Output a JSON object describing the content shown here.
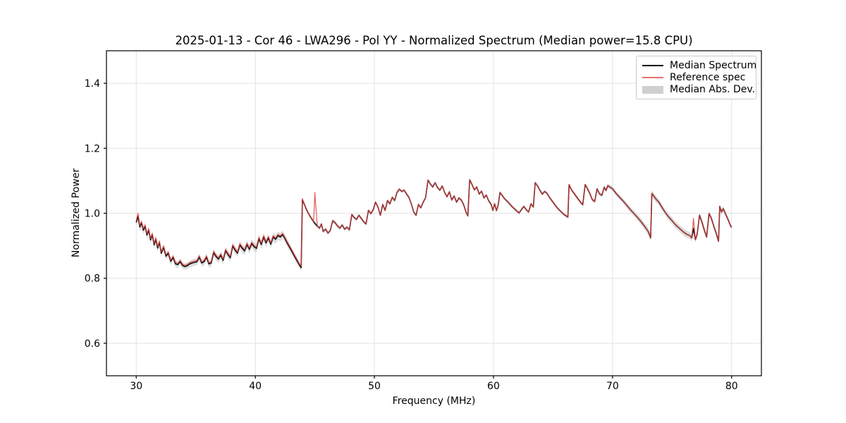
{
  "chart_data": {
    "type": "line",
    "title": "2025-01-13 - Cor 46 - LWA296 - Pol YY - Normalized Spectrum (Median power=15.8 CPU)",
    "xlabel": "Frequency (MHz)",
    "ylabel": "Normalized Power",
    "xlim": [
      27.5,
      82.5
    ],
    "ylim": [
      0.5,
      1.5
    ],
    "xticks": [
      "30",
      "40",
      "50",
      "60",
      "70",
      "80"
    ],
    "yticks": [
      "0.6",
      "0.8",
      "1.0",
      "1.2",
      "1.4"
    ],
    "grid": true,
    "grid_color": "#e2e2e2",
    "frame_color": "#000000",
    "legend": {
      "position": "upper right",
      "entries": [
        {
          "label": "Median Spectrum",
          "type": "line",
          "color": "#000000"
        },
        {
          "label": "Reference spec",
          "type": "line",
          "color": "#ef6f6f"
        },
        {
          "label": "Median Abs. Dev.",
          "type": "patch",
          "color": "#cfcfcf"
        }
      ]
    },
    "series": [
      {
        "name": "Median Spectrum",
        "color": "#0a0a0a",
        "points": [
          [
            30.0,
            0.972
          ],
          [
            30.15,
            0.99
          ],
          [
            30.3,
            0.958
          ],
          [
            30.45,
            0.97
          ],
          [
            30.6,
            0.948
          ],
          [
            30.75,
            0.96
          ],
          [
            30.9,
            0.933
          ],
          [
            31.05,
            0.948
          ],
          [
            31.2,
            0.918
          ],
          [
            31.35,
            0.934
          ],
          [
            31.5,
            0.903
          ],
          [
            31.65,
            0.92
          ],
          [
            31.8,
            0.893
          ],
          [
            31.95,
            0.91
          ],
          [
            32.1,
            0.877
          ],
          [
            32.3,
            0.895
          ],
          [
            32.5,
            0.868
          ],
          [
            32.7,
            0.877
          ],
          [
            32.9,
            0.852
          ],
          [
            33.1,
            0.864
          ],
          [
            33.3,
            0.844
          ],
          [
            33.5,
            0.842
          ],
          [
            33.7,
            0.851
          ],
          [
            33.9,
            0.839
          ],
          [
            34.1,
            0.836
          ],
          [
            34.3,
            0.839
          ],
          [
            34.5,
            0.844
          ],
          [
            34.7,
            0.847
          ],
          [
            34.9,
            0.849
          ],
          [
            35.1,
            0.851
          ],
          [
            35.3,
            0.865
          ],
          [
            35.5,
            0.847
          ],
          [
            35.7,
            0.851
          ],
          [
            35.9,
            0.865
          ],
          [
            36.1,
            0.844
          ],
          [
            36.3,
            0.847
          ],
          [
            36.5,
            0.879
          ],
          [
            36.7,
            0.867
          ],
          [
            36.9,
            0.859
          ],
          [
            37.1,
            0.871
          ],
          [
            37.3,
            0.855
          ],
          [
            37.5,
            0.885
          ],
          [
            37.7,
            0.873
          ],
          [
            37.9,
            0.863
          ],
          [
            38.1,
            0.899
          ],
          [
            38.3,
            0.887
          ],
          [
            38.5,
            0.877
          ],
          [
            38.7,
            0.902
          ],
          [
            38.9,
            0.892
          ],
          [
            39.1,
            0.884
          ],
          [
            39.3,
            0.904
          ],
          [
            39.5,
            0.889
          ],
          [
            39.7,
            0.907
          ],
          [
            39.9,
            0.897
          ],
          [
            40.1,
            0.892
          ],
          [
            40.3,
            0.922
          ],
          [
            40.5,
            0.904
          ],
          [
            40.7,
            0.927
          ],
          [
            40.9,
            0.909
          ],
          [
            41.1,
            0.924
          ],
          [
            41.3,
            0.905
          ],
          [
            41.5,
            0.927
          ],
          [
            41.7,
            0.92
          ],
          [
            41.9,
            0.931
          ],
          [
            42.1,
            0.927
          ],
          [
            42.3,
            0.934
          ],
          [
            42.5,
            0.921
          ],
          [
            42.7,
            0.907
          ],
          [
            42.9,
            0.894
          ],
          [
            43.1,
            0.881
          ],
          [
            43.3,
            0.867
          ],
          [
            43.5,
            0.854
          ],
          [
            43.7,
            0.841
          ],
          [
            43.85,
            0.833
          ],
          [
            43.95,
            1.041
          ],
          [
            44.1,
            1.029
          ],
          [
            44.3,
            1.011
          ],
          [
            44.5,
            0.997
          ],
          [
            44.7,
            0.985
          ],
          [
            44.9,
            0.974
          ],
          [
            45.0,
            0.969
          ],
          [
            45.2,
            0.961
          ],
          [
            45.4,
            0.954
          ],
          [
            45.55,
            0.967
          ],
          [
            45.7,
            0.944
          ],
          [
            45.9,
            0.951
          ],
          [
            46.1,
            0.939
          ],
          [
            46.3,
            0.947
          ],
          [
            46.5,
            0.977
          ],
          [
            46.7,
            0.971
          ],
          [
            46.9,
            0.961
          ],
          [
            47.1,
            0.954
          ],
          [
            47.3,
            0.964
          ],
          [
            47.5,
            0.951
          ],
          [
            47.7,
            0.957
          ],
          [
            47.9,
            0.949
          ],
          [
            48.1,
            0.996
          ],
          [
            48.3,
            0.987
          ],
          [
            48.5,
            0.981
          ],
          [
            48.7,
            0.994
          ],
          [
            48.9,
            0.984
          ],
          [
            49.1,
            0.974
          ],
          [
            49.3,
            0.967
          ],
          [
            49.5,
            1.009
          ],
          [
            49.7,
            0.999
          ],
          [
            49.9,
            1.011
          ],
          [
            50.1,
            1.034
          ],
          [
            50.3,
            1.019
          ],
          [
            50.5,
            0.994
          ],
          [
            50.7,
            1.027
          ],
          [
            50.9,
            1.009
          ],
          [
            51.1,
            1.039
          ],
          [
            51.3,
            1.029
          ],
          [
            51.5,
            1.049
          ],
          [
            51.7,
            1.039
          ],
          [
            51.9,
            1.064
          ],
          [
            52.1,
            1.074
          ],
          [
            52.3,
            1.067
          ],
          [
            52.5,
            1.071
          ],
          [
            52.7,
            1.059
          ],
          [
            52.9,
            1.049
          ],
          [
            53.1,
            1.029
          ],
          [
            53.3,
            1.004
          ],
          [
            53.5,
            0.994
          ],
          [
            53.7,
            1.027
          ],
          [
            53.9,
            1.017
          ],
          [
            54.1,
            1.034
          ],
          [
            54.3,
            1.048
          ],
          [
            54.5,
            1.102
          ],
          [
            54.7,
            1.09
          ],
          [
            54.9,
            1.081
          ],
          [
            55.1,
            1.094
          ],
          [
            55.3,
            1.079
          ],
          [
            55.5,
            1.071
          ],
          [
            55.7,
            1.084
          ],
          [
            55.9,
            1.064
          ],
          [
            56.1,
            1.051
          ],
          [
            56.3,
            1.066
          ],
          [
            56.5,
            1.041
          ],
          [
            56.7,
            1.053
          ],
          [
            56.9,
            1.034
          ],
          [
            57.1,
            1.047
          ],
          [
            57.3,
            1.041
          ],
          [
            57.5,
            1.026
          ],
          [
            57.7,
            1.003
          ],
          [
            57.85,
            0.992
          ],
          [
            58.0,
            1.103
          ],
          [
            58.2,
            1.088
          ],
          [
            58.4,
            1.072
          ],
          [
            58.6,
            1.081
          ],
          [
            58.8,
            1.059
          ],
          [
            59.0,
            1.068
          ],
          [
            59.2,
            1.047
          ],
          [
            59.4,
            1.056
          ],
          [
            59.6,
            1.038
          ],
          [
            59.8,
            1.028
          ],
          [
            59.95,
            1.009
          ],
          [
            60.1,
            1.029
          ],
          [
            60.25,
            1.008
          ],
          [
            60.4,
            1.026
          ],
          [
            60.55,
            1.064
          ],
          [
            60.75,
            1.054
          ],
          [
            60.95,
            1.044
          ],
          [
            61.15,
            1.037
          ],
          [
            61.35,
            1.029
          ],
          [
            61.55,
            1.021
          ],
          [
            61.75,
            1.014
          ],
          [
            61.95,
            1.007
          ],
          [
            62.15,
            1.001
          ],
          [
            62.35,
            1.011
          ],
          [
            62.55,
            1.021
          ],
          [
            62.75,
            1.011
          ],
          [
            62.95,
            1.004
          ],
          [
            63.15,
            1.029
          ],
          [
            63.35,
            1.019
          ],
          [
            63.5,
            1.094
          ],
          [
            63.7,
            1.084
          ],
          [
            63.9,
            1.071
          ],
          [
            64.1,
            1.059
          ],
          [
            64.3,
            1.067
          ],
          [
            64.5,
            1.061
          ],
          [
            64.7,
            1.049
          ],
          [
            64.9,
            1.039
          ],
          [
            65.1,
            1.029
          ],
          [
            65.3,
            1.019
          ],
          [
            65.5,
            1.011
          ],
          [
            65.7,
            1.004
          ],
          [
            65.9,
            0.997
          ],
          [
            66.1,
            0.992
          ],
          [
            66.25,
            0.988
          ],
          [
            66.35,
            1.088
          ],
          [
            66.55,
            1.072
          ],
          [
            66.75,
            1.062
          ],
          [
            66.95,
            1.052
          ],
          [
            67.15,
            1.042
          ],
          [
            67.35,
            1.032
          ],
          [
            67.5,
            1.026
          ],
          [
            67.7,
            1.088
          ],
          [
            67.9,
            1.075
          ],
          [
            68.1,
            1.06
          ],
          [
            68.3,
            1.042
          ],
          [
            68.5,
            1.036
          ],
          [
            68.7,
            1.075
          ],
          [
            68.9,
            1.06
          ],
          [
            69.1,
            1.055
          ],
          [
            69.3,
            1.08
          ],
          [
            69.45,
            1.07
          ],
          [
            69.6,
            1.085
          ],
          [
            69.8,
            1.08
          ],
          [
            70.0,
            1.075
          ],
          [
            70.3,
            1.061
          ],
          [
            70.6,
            1.049
          ],
          [
            70.9,
            1.037
          ],
          [
            71.2,
            1.024
          ],
          [
            71.5,
            1.011
          ],
          [
            71.8,
            0.999
          ],
          [
            72.1,
            0.987
          ],
          [
            72.4,
            0.974
          ],
          [
            72.7,
            0.959
          ],
          [
            73.0,
            0.944
          ],
          [
            73.2,
            0.924
          ],
          [
            73.3,
            1.061
          ],
          [
            73.5,
            1.051
          ],
          [
            73.7,
            1.041
          ],
          [
            73.9,
            1.034
          ],
          [
            74.1,
            1.021
          ],
          [
            74.4,
            1.004
          ],
          [
            74.7,
            0.989
          ],
          [
            75.0,
            0.977
          ],
          [
            75.3,
            0.964
          ],
          [
            75.6,
            0.954
          ],
          [
            75.9,
            0.944
          ],
          [
            76.2,
            0.936
          ],
          [
            76.5,
            0.931
          ],
          [
            76.65,
            0.924
          ],
          [
            76.8,
            0.953
          ],
          [
            76.95,
            0.919
          ],
          [
            77.1,
            0.934
          ],
          [
            77.3,
            0.994
          ],
          [
            77.5,
            0.974
          ],
          [
            77.7,
            0.949
          ],
          [
            77.9,
            0.927
          ],
          [
            78.1,
            0.999
          ],
          [
            78.3,
            0.984
          ],
          [
            78.5,
            0.961
          ],
          [
            78.7,
            0.939
          ],
          [
            78.9,
            0.914
          ],
          [
            79.0,
            1.021
          ],
          [
            79.15,
            1.004
          ],
          [
            79.3,
            1.014
          ],
          [
            79.5,
            0.997
          ],
          [
            79.7,
            0.981
          ],
          [
            79.9,
            0.962
          ],
          [
            80.0,
            0.957
          ]
        ]
      },
      {
        "name": "Reference spec",
        "color": "#e03d3d",
        "opacity": 0.82,
        "base": "Median Spectrum",
        "offset_below_freq": 44,
        "offset": 0.004,
        "overrides": [
          [
            30.15,
            1.0
          ],
          [
            45.0,
            1.064
          ],
          [
            76.8,
            0.984
          ]
        ]
      },
      {
        "name": "Median Abs. Dev.",
        "type": "band",
        "around": "Median Spectrum",
        "fill": "#c4c4c4",
        "opacity": 0.6,
        "halfwidth_breakpoints": [
          [
            30,
            0.012
          ],
          [
            34,
            0.01
          ],
          [
            36,
            0.011
          ],
          [
            40,
            0.013
          ],
          [
            42,
            0.013
          ],
          [
            43.8,
            0.01
          ],
          [
            44,
            0.006
          ],
          [
            47,
            0.006
          ],
          [
            50,
            0.005
          ],
          [
            58,
            0.005
          ],
          [
            66,
            0.005
          ],
          [
            69,
            0.006
          ],
          [
            70,
            0.007
          ],
          [
            72,
            0.009
          ],
          [
            73.1,
            0.011
          ],
          [
            74,
            0.009
          ],
          [
            75,
            0.01
          ],
          [
            76.5,
            0.011
          ],
          [
            78,
            0.009
          ],
          [
            80,
            0.007
          ]
        ]
      }
    ]
  }
}
